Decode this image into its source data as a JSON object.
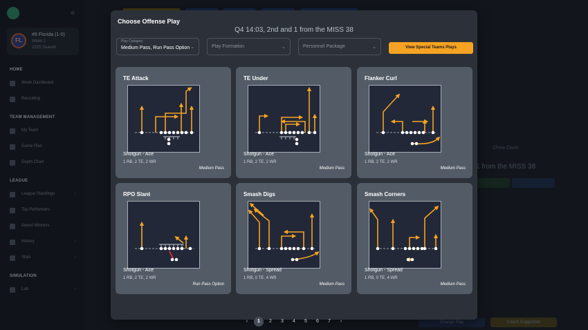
{
  "sidebar": {
    "team": {
      "badge": "FL",
      "name": "#9 Florida (1-0)",
      "week": "Week 2",
      "season": "2025 Season"
    },
    "sections": [
      {
        "title": "HOME",
        "items": [
          {
            "label": "Week Dashboard",
            "chevron": false
          },
          {
            "label": "Recruiting",
            "chevron": false
          }
        ]
      },
      {
        "title": "TEAM MANAGEMENT",
        "items": [
          {
            "label": "My Team",
            "chevron": false
          },
          {
            "label": "Game Plan",
            "chevron": false
          },
          {
            "label": "Depth Chart",
            "chevron": false
          }
        ]
      },
      {
        "title": "LEAGUE",
        "items": [
          {
            "label": "League Standings",
            "chevron": true
          },
          {
            "label": "Top Performers",
            "chevron": false
          },
          {
            "label": "Award Winners",
            "chevron": false
          },
          {
            "label": "History",
            "chevron": true
          },
          {
            "label": "Stats",
            "chevron": true
          }
        ]
      },
      {
        "title": "SIMULATION",
        "items": [
          {
            "label": "Lab",
            "chevron": true
          }
        ]
      }
    ]
  },
  "background": {
    "side_text": "1 from the MISS 38",
    "clock_label": "Chew Clock",
    "buttons": {
      "change_play": "Change Play",
      "coach_suggestion": "Coach Suggestion"
    }
  },
  "modal": {
    "title": "Choose Offense Play",
    "game_state": "Q4 14:03, 2nd and 1 from the MISS 38",
    "filters": {
      "category": {
        "label": "Play Category",
        "value": "Medium Pass, Run Pass Option"
      },
      "formation": {
        "placeholder": "Play Formation"
      },
      "personnel": {
        "placeholder": "Personnel Package"
      }
    },
    "special_button": "View Special Teams Plays",
    "plays": [
      {
        "name": "TE Attack",
        "formation": "Shotgun - Ace",
        "personnel": "1 RB, 2 TE, 2 WR",
        "type": "Medium Pass"
      },
      {
        "name": "TE Under",
        "formation": "Shotgun - Ace",
        "personnel": "1 RB, 2 TE, 2 WR",
        "type": "Medium Pass"
      },
      {
        "name": "Flanker Curl",
        "formation": "Shotgun - Ace",
        "personnel": "1 RB, 2 TE, 2 WR",
        "type": "Medium Pass"
      },
      {
        "name": "RPO Slant",
        "formation": "Shotgun - Ace",
        "personnel": "1 RB, 2 TE, 2 WR",
        "type": "Run Pass Option"
      },
      {
        "name": "Smash Digs",
        "formation": "Shotgun - Spread",
        "personnel": "1 RB, 0 TE, 4 WR",
        "type": "Medium Pass"
      },
      {
        "name": "Smash Corners",
        "formation": "Shotgun - Spread",
        "personnel": "1 RB, 0 TE, 4 WR",
        "type": "Medium Pass"
      }
    ],
    "pagination": {
      "prev": "‹",
      "next": "›",
      "pages": [
        "1",
        "2",
        "3",
        "4",
        "5",
        "6",
        "7"
      ],
      "current": "1"
    }
  },
  "colors": {
    "accent": "#f5a322",
    "route": "#f5a322",
    "block": "#e03131",
    "card": "#535b66",
    "modal": "#2c3139"
  }
}
